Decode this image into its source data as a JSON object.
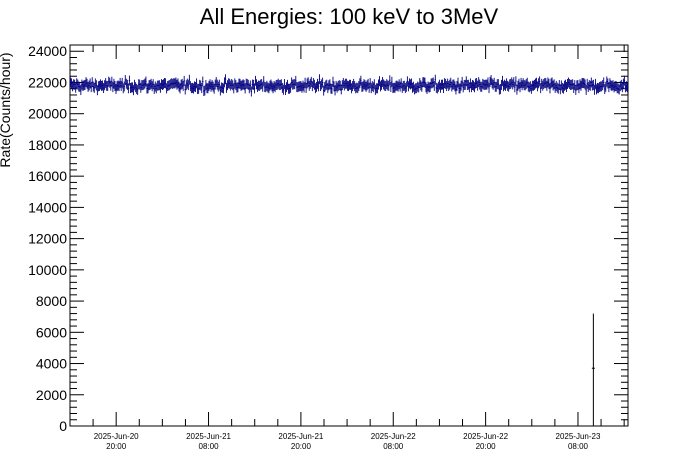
{
  "chart_data": {
    "type": "scatter",
    "title": "All Energies:  100 keV to 3MeV",
    "ylabel": "Rate(Counts/hour)",
    "xlabel": "",
    "ylim": [
      0,
      24000
    ],
    "yticks": [
      0,
      2000,
      4000,
      6000,
      8000,
      10000,
      12000,
      14000,
      16000,
      18000,
      20000,
      22000,
      24000
    ],
    "xtick_labels": [
      {
        "date": "2025-Jun-20",
        "time": "20:00"
      },
      {
        "date": "2025-Jun-21",
        "time": "08:00"
      },
      {
        "date": "2025-Jun-21",
        "time": "20:00"
      },
      {
        "date": "2025-Jun-22",
        "time": "08:00"
      },
      {
        "date": "2025-Jun-22",
        "time": "20:00"
      },
      {
        "date": "2025-Jun-23",
        "time": "08:00"
      }
    ],
    "xlim_hours": [
      -6.0,
      66.5
    ],
    "baseline_rate": 21800,
    "fluctuation": 500,
    "error_bar": 320,
    "outlier": {
      "x_hours": 62.0,
      "y": 3700,
      "error_low": 3700,
      "error_high": 3500
    },
    "color": "#00007f"
  }
}
